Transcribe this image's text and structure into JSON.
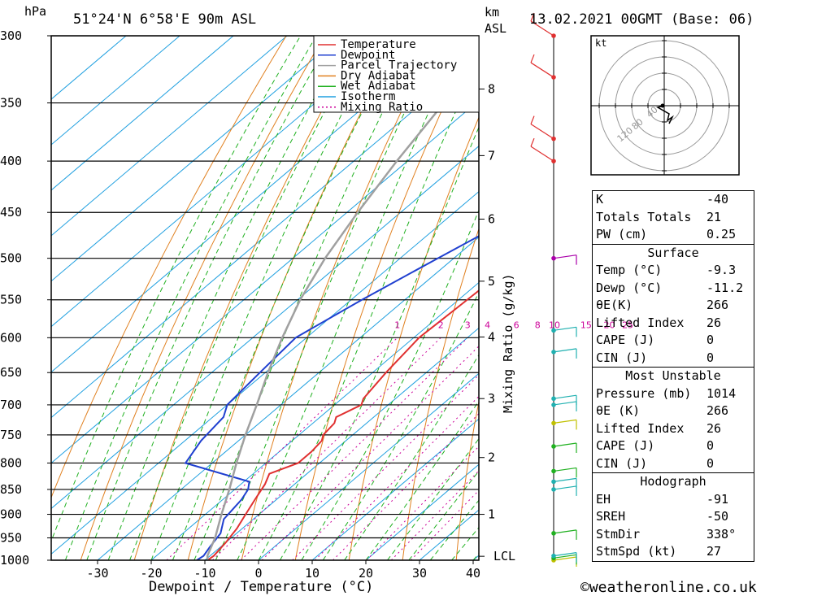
{
  "header": {
    "location": "51°24'N  6°58'E  90m  ASL",
    "date": "13.02.2021  00GMT  (Base: 06)",
    "hpa_label": "hPa",
    "km_label": "km",
    "asl_label": "ASL",
    "kt_label": "kt"
  },
  "footer": {
    "credit": "©weatheronline.co.uk"
  },
  "legend": [
    {
      "name": "Temperature",
      "color": "#e03030"
    },
    {
      "name": "Dewpoint",
      "color": "#2040d0"
    },
    {
      "name": "Parcel Trajectory",
      "color": "#a0a0a0"
    },
    {
      "name": "Dry Adiabat",
      "color": "#e08020"
    },
    {
      "name": "Wet Adiabat",
      "color": "#20b020"
    },
    {
      "name": "Isotherm",
      "color": "#20a0e0"
    },
    {
      "name": "Mixing Ratio",
      "color": "#cc0099"
    }
  ],
  "table": {
    "general": [
      {
        "label": "K",
        "value": "-40"
      },
      {
        "label": "Totals Totals",
        "value": "21"
      },
      {
        "label": "PW (cm)",
        "value": "0.25"
      }
    ],
    "surface_title": "Surface",
    "surface": [
      {
        "label": "Temp (°C)",
        "value": "-9.3"
      },
      {
        "label": "Dewp (°C)",
        "value": "-11.2"
      },
      {
        "label": "θE(K)",
        "value": "266"
      },
      {
        "label": "Lifted Index",
        "value": "26"
      },
      {
        "label": "CAPE (J)",
        "value": "0"
      },
      {
        "label": "CIN (J)",
        "value": "0"
      }
    ],
    "unstable_title": "Most Unstable",
    "unstable": [
      {
        "label": "Pressure (mb)",
        "value": "1014"
      },
      {
        "label": "θE (K)",
        "value": "266"
      },
      {
        "label": "Lifted Index",
        "value": "26"
      },
      {
        "label": "CAPE (J)",
        "value": "0"
      },
      {
        "label": "CIN (J)",
        "value": "0"
      }
    ],
    "hodo_title": "Hodograph",
    "hodo": [
      {
        "label": "EH",
        "value": "-91"
      },
      {
        "label": "SREH",
        "value": "-50"
      },
      {
        "label": "StmDir",
        "value": "338°"
      },
      {
        "label": "StmSpd (kt)",
        "value": "27"
      }
    ]
  },
  "chart_data": {
    "type": "line",
    "title": "51°24'N  6°58'E  90m  ASL",
    "xlabel": "Dewpoint / Temperature (°C)",
    "ylabel": "hPa",
    "y2label": "Mixing Ratio (g/kg)",
    "xlim": [
      -40,
      40
    ],
    "ylim": [
      1000,
      300
    ],
    "x_ticks": [
      -30,
      -20,
      -10,
      0,
      10,
      20,
      30,
      40
    ],
    "pressure_levels": [
      300,
      350,
      400,
      450,
      500,
      550,
      600,
      650,
      700,
      750,
      800,
      850,
      900,
      950,
      1000
    ],
    "km_ticks": [
      {
        "label": "8",
        "p": 339
      },
      {
        "label": "7",
        "p": 395
      },
      {
        "label": "6",
        "p": 457
      },
      {
        "label": "5",
        "p": 527
      },
      {
        "label": "4",
        "p": 599
      },
      {
        "label": "3",
        "p": 690
      },
      {
        "label": "2",
        "p": 790
      },
      {
        "label": "1",
        "p": 900
      },
      {
        "label": "LCL",
        "p": 991
      }
    ],
    "mixing_ratio_labels": [
      "1",
      "2",
      "3",
      "4",
      "6",
      "8",
      "10",
      "15",
      "20",
      "25"
    ],
    "series": [
      {
        "name": "Temperature",
        "color": "#e03030",
        "p": [
          1000,
          990,
          960,
          930,
          900,
          870,
          840,
          820,
          810,
          800,
          780,
          760,
          750,
          730,
          720,
          700,
          690,
          650,
          600,
          560,
          520,
          500,
          450,
          400,
          350,
          320,
          310,
          300
        ],
        "t": [
          -9.5,
          -9.3,
          -10,
          -11,
          -12.5,
          -14,
          -15.5,
          -17,
          -15.5,
          -14,
          -14,
          -14.5,
          -15.5,
          -16,
          -17,
          -15,
          -16,
          -17.5,
          -19,
          -18.5,
          -18,
          -19,
          -22,
          -26,
          -33,
          -36.5,
          -36,
          -36
        ]
      },
      {
        "name": "Dewpoint",
        "color": "#2040d0",
        "p": [
          1000,
          990,
          970,
          940,
          910,
          890,
          870,
          850,
          835,
          800,
          760,
          720,
          700,
          650,
          600,
          550,
          500,
          440,
          430,
          400,
          350,
          320,
          310,
          300
        ],
        "t": [
          -11.5,
          -11.2,
          -12,
          -13,
          -15.5,
          -16,
          -16.5,
          -17.5,
          -19,
          -35,
          -37,
          -38,
          -40,
          -41,
          -42,
          -38,
          -33,
          -26,
          -28,
          -33,
          -36,
          -39,
          -45,
          -42
        ]
      },
      {
        "name": "Parcel Trajectory",
        "color": "#a0a0a0",
        "p": [
          1000,
          990,
          950,
          900,
          850,
          800,
          750,
          700,
          650,
          600,
          550,
          500,
          450,
          400,
          350
        ],
        "t": [
          -9.5,
          -10.5,
          -13,
          -17,
          -21,
          -25.5,
          -30,
          -34.5,
          -39.5,
          -44.5,
          -49.5,
          -54,
          -58,
          -62,
          -66
        ]
      }
    ],
    "wind_barbs": [
      {
        "p": 1000,
        "color": "#c0c000"
      },
      {
        "p": 995,
        "color": "#20b020"
      },
      {
        "p": 990,
        "color": "#20b0b0"
      },
      {
        "p": 940,
        "color": "#20b020"
      },
      {
        "p": 850,
        "color": "#20b0b0"
      },
      {
        "p": 835,
        "color": "#20b0b0"
      },
      {
        "p": 815,
        "color": "#20b020"
      },
      {
        "p": 770,
        "color": "#20b020"
      },
      {
        "p": 730,
        "color": "#c0c000"
      },
      {
        "p": 700,
        "color": "#20b0b0"
      },
      {
        "p": 690,
        "color": "#20b0b0"
      },
      {
        "p": 620,
        "color": "#20b0b0"
      },
      {
        "p": 590,
        "color": "#20b0b0"
      },
      {
        "p": 500,
        "color": "#aa00aa"
      },
      {
        "p": 400,
        "color": "#e03030"
      },
      {
        "p": 380,
        "color": "#e03030"
      },
      {
        "p": 330,
        "color": "#e03030"
      },
      {
        "p": 300,
        "color": "#e03030"
      }
    ],
    "hodograph": {
      "ring_labels": [
        "40",
        "80",
        "120"
      ]
    }
  }
}
